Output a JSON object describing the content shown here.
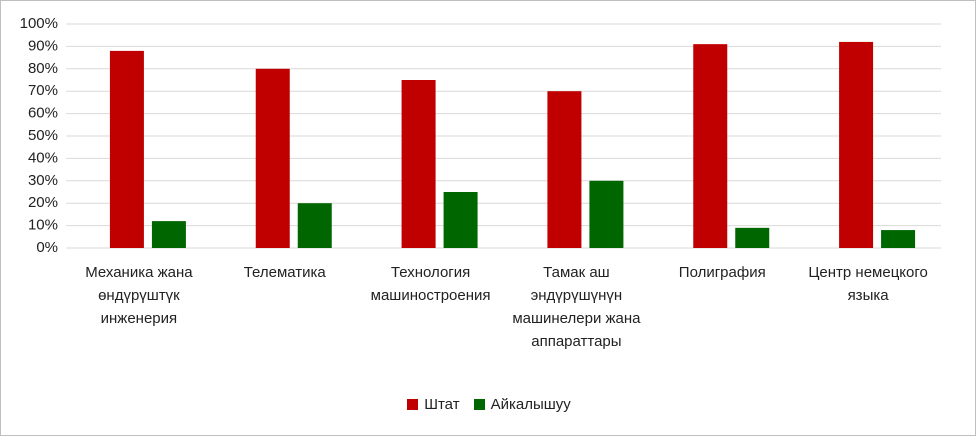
{
  "chart_data": {
    "type": "bar",
    "categories": [
      "Механика жана өндүрүштүк инженерия",
      "Телематика",
      "Технология машиностроения",
      "Тамак аш эндүрүшүнүн машинелери жана аппараттары",
      "Полиграфия",
      "Центр немецкого языка"
    ],
    "series": [
      {
        "name": "Штат",
        "color": "#c00000",
        "values": [
          88,
          80,
          75,
          70,
          91,
          92
        ]
      },
      {
        "name": "Айкалышуу",
        "color": "#006600",
        "values": [
          12,
          20,
          25,
          30,
          9,
          8
        ]
      }
    ],
    "ylim": [
      0,
      100
    ],
    "yticks": [
      {
        "value": 0,
        "label": "0%"
      },
      {
        "value": 10,
        "label": "10%"
      },
      {
        "value": 20,
        "label": "20%"
      },
      {
        "value": 30,
        "label": "30%"
      },
      {
        "value": 40,
        "label": "40%"
      },
      {
        "value": 50,
        "label": "50%"
      },
      {
        "value": 60,
        "label": "60%"
      },
      {
        "value": 70,
        "label": "70%"
      },
      {
        "value": 80,
        "label": "80%"
      },
      {
        "value": 90,
        "label": "90%"
      },
      {
        "value": 100,
        "label": "100%"
      }
    ],
    "grid": true,
    "legend": "bottom"
  }
}
